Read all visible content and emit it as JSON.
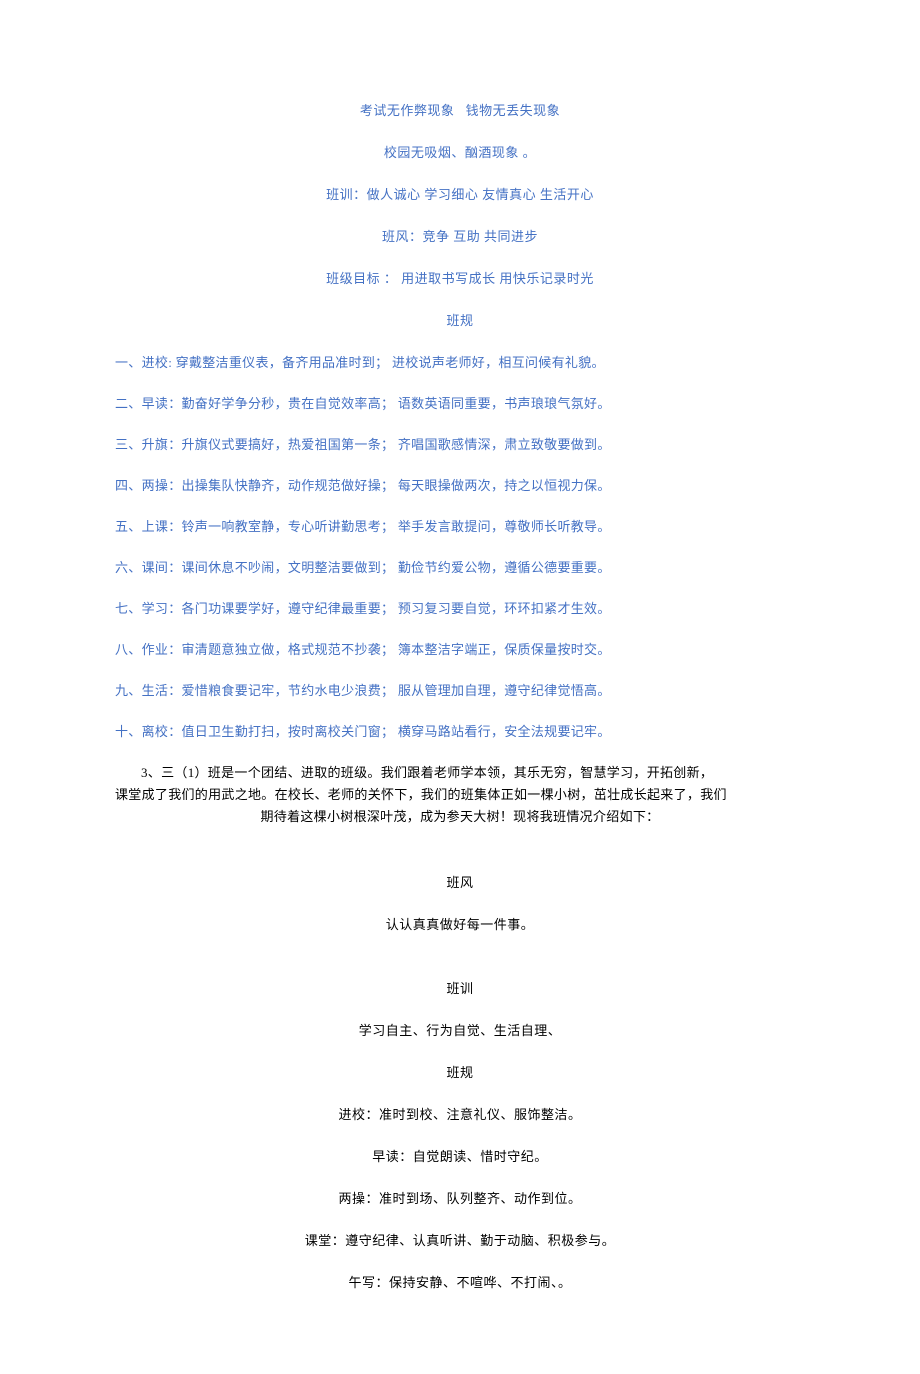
{
  "header": {
    "line1": "考试无作弊现象   钱物无丢失现象",
    "line2": "校园无吸烟、酗酒现象 。",
    "motto": "班训：做人诚心 学习细心 友情真心 生活开心",
    "style": "班风：竞争 互助 共同进步",
    "goal": "班级目标 ： 用进取书写成长 用快乐记录时光",
    "rules_title": "班规"
  },
  "rules": {
    "item1": "一、进校: 穿戴整洁重仪表，备齐用品准时到；  进校说声老师好，相互问候有礼貌。",
    "item2": "二、早读：勤奋好学争分秒，贵在自觉效率高；  语数英语同重要，书声琅琅气氛好。",
    "item3": "三、升旗：升旗仪式要搞好，热爱祖国第一条；  齐唱国歌感情深，肃立致敬要做到。",
    "item4": "四、两操：出操集队快静齐，动作规范做好操；  每天眼操做两次，持之以恒视力保。",
    "item5": "五、上课：铃声一响教室静，专心听讲勤思考；  举手发言敢提问，尊敬师长听教导。",
    "item6": "六、课间：课间休息不吵闹，文明整洁要做到；  勤俭节约爱公物，遵循公德要重要。",
    "item7": "七、学习：各门功课要学好，遵守纪律最重要；  预习复习要自觉，环环扣紧才生效。",
    "item8": "八、作业：审清题意独立做，格式规范不抄袭；  簿本整洁字端正，保质保量按时交。",
    "item9": "九、生活：爱惜粮食要记牢，节约水电少浪费；  服从管理加自理，遵守纪律觉悟高。",
    "item10": "十、离校：值日卫生勤打扫，按时离校关门窗；  横穿马路站看行，安全法规要记牢。"
  },
  "paragraph": {
    "line1": "3、三（1）班是一个团结、进取的班级。我们跟着老师学本领，其乐无穷，智慧学习，开拓创新，",
    "line2": "课堂成了我们的用武之地。在校长、老师的关怀下，我们的班集体正如一棵小树，茁壮成长起来了，我们",
    "line3": "期待着这棵小树根深叶茂，成为参天大树！现将我班情况介绍如下："
  },
  "section2": {
    "title1": "班风",
    "content1": "认认真真做好每一件事。",
    "title2": "班训",
    "content2": "学习自主、行为自觉、生活自理、",
    "title3": "班规",
    "rule1": "进校：准时到校、注意礼仪、服饰整洁。",
    "rule2": "早读：自觉朗读、惜时守纪。",
    "rule3": "两操：准时到场、队列整齐、动作到位。",
    "rule4": "课堂：遵守纪律、认真听讲、勤于动脑、积极参与。",
    "rule5": "午写：保持安静、不喧哗、不打闹、。"
  },
  "colors": {
    "blue": "#4471c4",
    "black": "#000000",
    "background": "#ffffff"
  }
}
